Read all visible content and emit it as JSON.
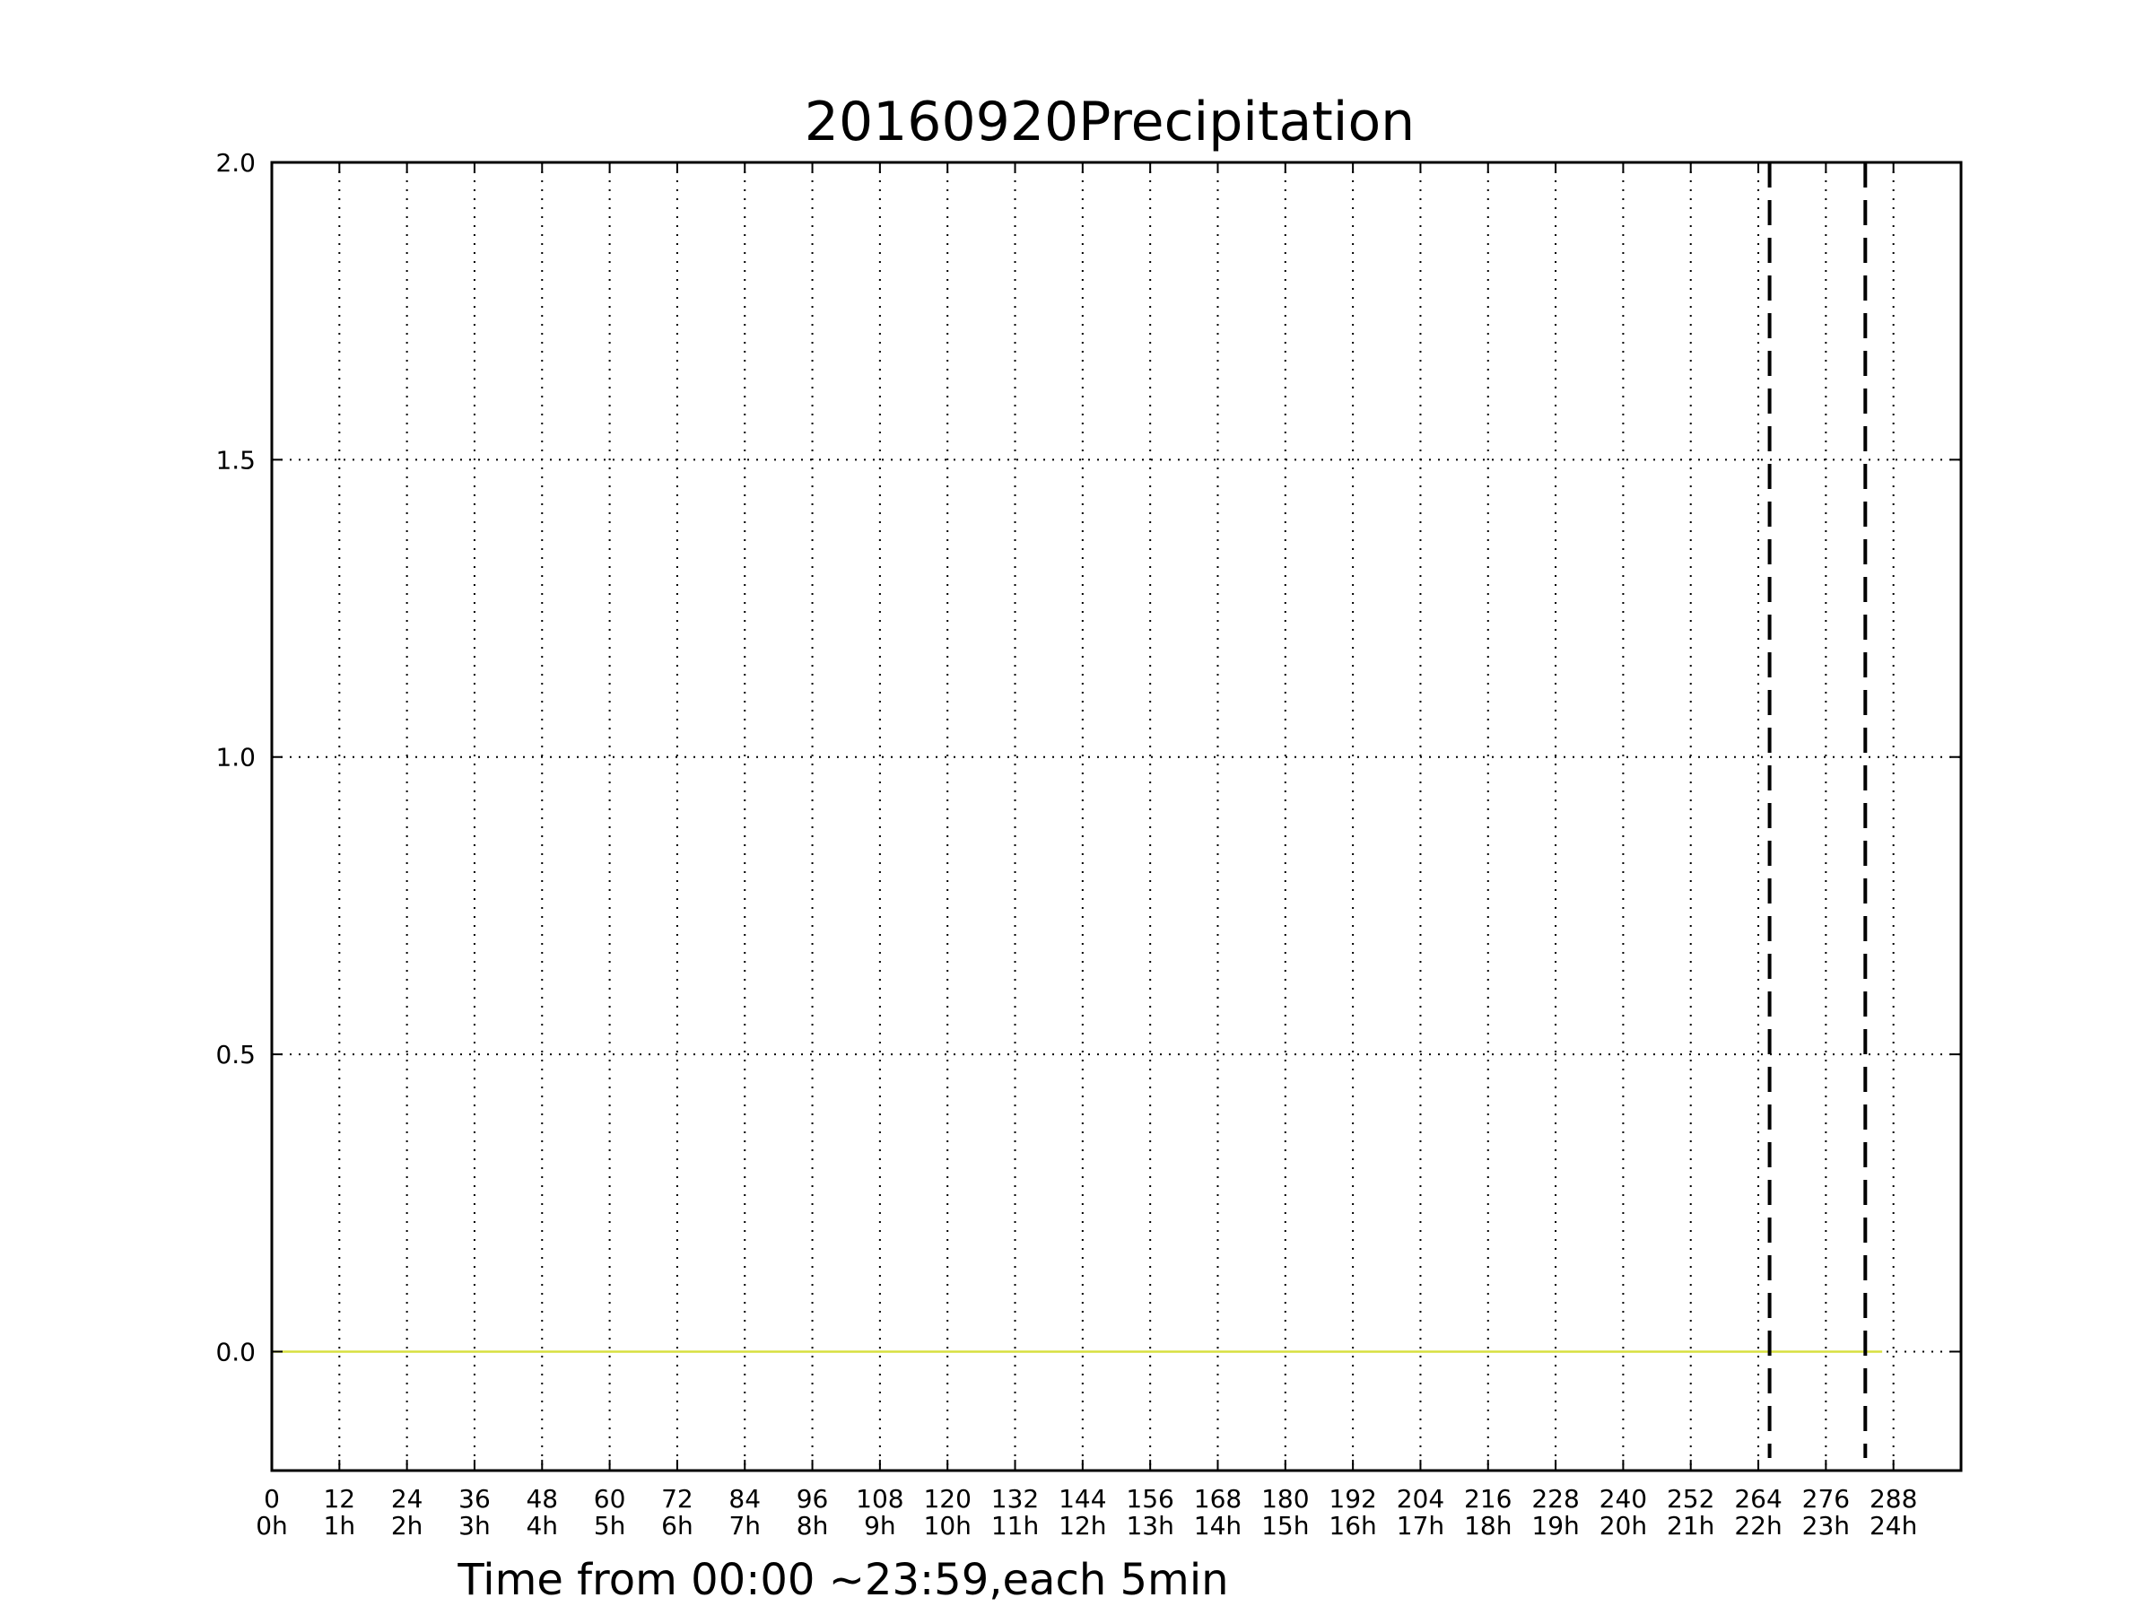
{
  "chart_data": {
    "type": "line",
    "title": "20160920Precipitation",
    "xlabel": "Time from 00:00 ~23:59,each 5min",
    "ylabel": "",
    "xlim": [
      0,
      300
    ],
    "ylim": [
      -0.2,
      2.0
    ],
    "xticks": [
      0,
      12,
      24,
      36,
      48,
      60,
      72,
      84,
      96,
      108,
      120,
      132,
      144,
      156,
      168,
      180,
      192,
      204,
      216,
      228,
      240,
      252,
      264,
      276,
      288
    ],
    "xtick_labels": [
      "0",
      "12",
      "24",
      "36",
      "48",
      "60",
      "72",
      "84",
      "96",
      "108",
      "120",
      "132",
      "144",
      "156",
      "168",
      "180",
      "192",
      "204",
      "216",
      "228",
      "240",
      "252",
      "264",
      "276",
      "288"
    ],
    "xtick_hour_labels": [
      "0h",
      "1h",
      "2h",
      "3h",
      "4h",
      "5h",
      "6h",
      "7h",
      "8h",
      "9h",
      "10h",
      "11h",
      "12h",
      "13h",
      "14h",
      "15h",
      "16h",
      "17h",
      "18h",
      "19h",
      "20h",
      "21h",
      "22h",
      "23h",
      "24h"
    ],
    "yticks": [
      0.0,
      0.5,
      1.0,
      1.5,
      2.0
    ],
    "ytick_labels": [
      "0.0",
      "0.5",
      "1.0",
      "1.5",
      "2.0"
    ],
    "grid": true,
    "series": [
      {
        "name": "Precipitation",
        "color": "#d8e040",
        "x": [
          0,
          286
        ],
        "y": [
          0.0,
          0.0
        ]
      }
    ],
    "vlines": [
      {
        "x": 266,
        "style": "dashed",
        "color": "#000000"
      },
      {
        "x": 283,
        "style": "dashed",
        "color": "#000000"
      }
    ]
  }
}
